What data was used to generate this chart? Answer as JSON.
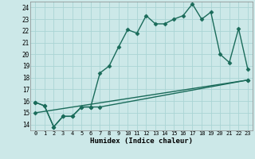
{
  "xlabel": "Humidex (Indice chaleur)",
  "bg_color": "#cce8e8",
  "grid_color": "#aad4d4",
  "line_color": "#1a6b5a",
  "xlim": [
    -0.5,
    23.5
  ],
  "ylim": [
    13.5,
    24.5
  ],
  "xticks": [
    0,
    1,
    2,
    3,
    4,
    5,
    6,
    7,
    8,
    9,
    10,
    11,
    12,
    13,
    14,
    15,
    16,
    17,
    18,
    19,
    20,
    21,
    22,
    23
  ],
  "yticks": [
    14,
    15,
    16,
    17,
    18,
    19,
    20,
    21,
    22,
    23,
    24
  ],
  "series1_x": [
    0,
    1,
    2,
    3,
    4,
    5,
    6,
    7,
    8,
    9,
    10,
    11,
    12,
    13,
    14,
    15,
    16,
    17,
    18,
    19,
    20,
    21,
    22,
    23
  ],
  "series1_y": [
    15.9,
    15.6,
    13.8,
    14.7,
    14.7,
    15.5,
    15.5,
    18.4,
    19.0,
    20.6,
    22.1,
    21.8,
    23.3,
    22.6,
    22.6,
    23.0,
    23.3,
    24.3,
    23.0,
    23.6,
    20.0,
    19.3,
    22.2,
    18.7
  ],
  "series2_x": [
    0,
    1,
    2,
    3,
    4,
    5,
    6,
    7,
    23
  ],
  "series2_y": [
    15.9,
    15.6,
    13.8,
    14.7,
    14.7,
    15.5,
    15.5,
    15.5,
    17.8
  ],
  "series3_x": [
    0,
    23
  ],
  "series3_y": [
    15.0,
    17.8
  ],
  "marker": "D",
  "markersize": 2.5,
  "linewidth": 1.0
}
